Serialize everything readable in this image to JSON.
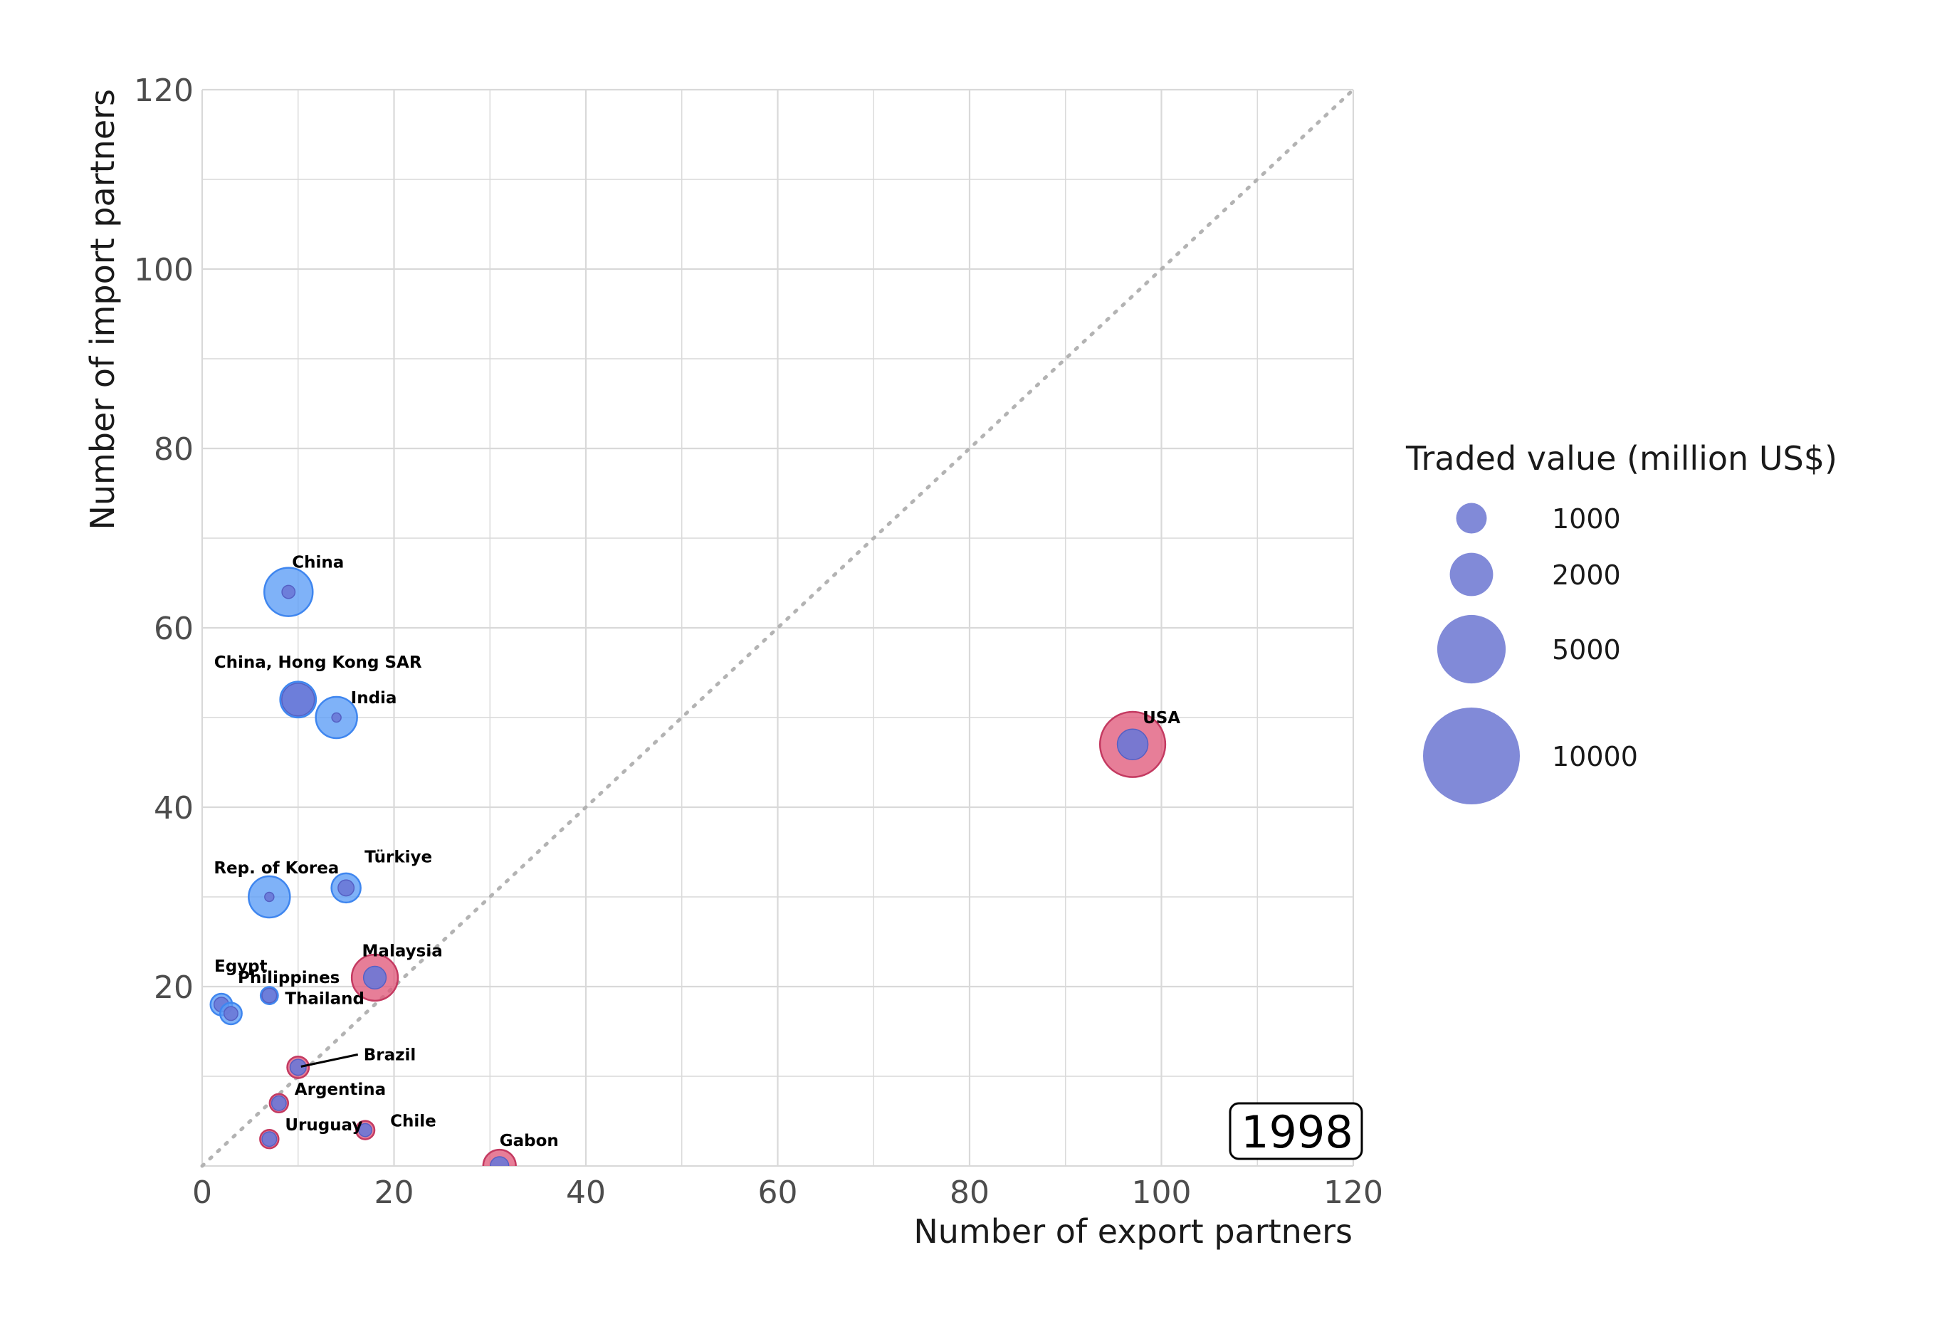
{
  "chart_data": {
    "type": "scatter",
    "xlabel": "Number of export partners",
    "ylabel": "Number of import partners",
    "xlim": [
      0,
      120
    ],
    "ylim": [
      0,
      120
    ],
    "x_ticks": [
      "0",
      "20",
      "40",
      "60",
      "80",
      "100",
      "120"
    ],
    "y_ticks": [
      "20",
      "40",
      "60",
      "80",
      "100",
      "120"
    ],
    "grid": true,
    "diagonal_reference_line": "dotted, y = x",
    "year": "1998",
    "legend": {
      "title": "Traded value (million US$)",
      "placement": "right",
      "entries": [
        {
          "label": "1000",
          "value": 1000
        },
        {
          "label": "2000",
          "value": 2000
        },
        {
          "label": "5000",
          "value": 5000
        },
        {
          "label": "10000",
          "value": 10000
        }
      ]
    },
    "colors": {
      "import_side": "#5b9cf6",
      "export_side": "#e05a7b",
      "inner": "#6c78d6",
      "legend_bubble": "#7a84d6",
      "grid": "#d9d9d9",
      "diagonal": "#b3b3b3"
    },
    "points": [
      {
        "name": "China",
        "x": 9,
        "y": 64,
        "outer_value": 550,
        "outer_type": "import",
        "inner_value": 40
      },
      {
        "name": "China, Hong Kong SAR",
        "x": 10,
        "y": 52,
        "outer_value": 300,
        "outer_type": "import",
        "inner_value": 250
      },
      {
        "name": "India",
        "x": 14,
        "y": 50,
        "outer_value": 400,
        "outer_type": "import",
        "inner_value": 20
      },
      {
        "name": "USA",
        "x": 97,
        "y": 47,
        "outer_value": 1000,
        "outer_type": "export",
        "inner_value": 220
      },
      {
        "name": "Türkiye",
        "x": 15,
        "y": 31,
        "outer_value": 200,
        "outer_type": "import",
        "inner_value": 60
      },
      {
        "name": "Rep. of Korea",
        "x": 7,
        "y": 30,
        "outer_value": 400,
        "outer_type": "import",
        "inner_value": 20
      },
      {
        "name": "Malaysia",
        "x": 18,
        "y": 21,
        "outer_value": 500,
        "outer_type": "export",
        "inner_value": 120
      },
      {
        "name": "Egypt",
        "x": 2,
        "y": 18,
        "outer_value": 110,
        "outer_type": "import",
        "inner_value": 50
      },
      {
        "name": "Thailand",
        "x": 7,
        "y": 19,
        "outer_value": 70,
        "outer_type": "import",
        "inner_value": 50
      },
      {
        "name": "Philippines",
        "x": 3,
        "y": 17,
        "outer_value": 110,
        "outer_type": "import",
        "inner_value": 45
      },
      {
        "name": "Brazil",
        "x": 10,
        "y": 11,
        "outer_value": 110,
        "outer_type": "export",
        "inner_value": 60
      },
      {
        "name": "Argentina",
        "x": 8,
        "y": 7,
        "outer_value": 80,
        "outer_type": "export",
        "inner_value": 50
      },
      {
        "name": "Uruguay",
        "x": 7,
        "y": 3,
        "outer_value": 80,
        "outer_type": "export",
        "inner_value": 50
      },
      {
        "name": "Chile",
        "x": 17,
        "y": 4,
        "outer_value": 80,
        "outer_type": "export",
        "inner_value": 40
      },
      {
        "name": "Gabon",
        "x": 31,
        "y": 0,
        "outer_value": 250,
        "outer_type": "export",
        "inner_value": 80
      }
    ]
  }
}
